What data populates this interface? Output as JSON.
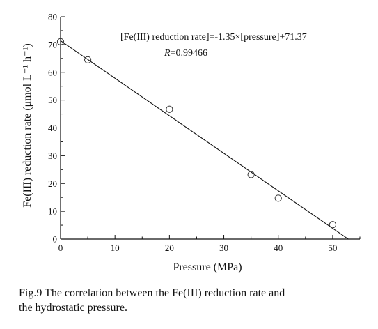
{
  "chart_data": {
    "type": "scatter",
    "xlabel": "Pressure (MPa)",
    "ylabel": "Fe(III) reduction rate (μmol L⁻¹ h⁻¹)",
    "xlim": [
      0,
      55
    ],
    "ylim": [
      0,
      80
    ],
    "x_ticks": [
      0,
      10,
      20,
      30,
      40,
      50
    ],
    "y_ticks": [
      0,
      10,
      20,
      30,
      40,
      50,
      60,
      70,
      80
    ],
    "grid": false,
    "legend": "none",
    "series": [
      {
        "marker": "open-circle",
        "points": [
          {
            "x": 0,
            "y": 71
          },
          {
            "x": 5,
            "y": 64.5
          },
          {
            "x": 20,
            "y": 46.7
          },
          {
            "x": 35,
            "y": 23.2
          },
          {
            "x": 40,
            "y": 14.7
          },
          {
            "x": 50,
            "y": 5.2
          }
        ]
      }
    ],
    "fit_line": {
      "slope": -1.35,
      "intercept": 71.37,
      "x_range": [
        0,
        52.9
      ]
    },
    "annotations": {
      "equation": "[Fe(III) reduction rate]=-1.35×[pressure]+71.37",
      "r_label": "R",
      "r_value": "=0.99466"
    },
    "colors": {
      "axis": "#111111",
      "line": "#111111",
      "marker": "#333333"
    }
  },
  "caption": {
    "line1": "Fig.9 The correlation between the Fe(III) reduction rate and",
    "line2": "the hydrostatic pressure."
  }
}
